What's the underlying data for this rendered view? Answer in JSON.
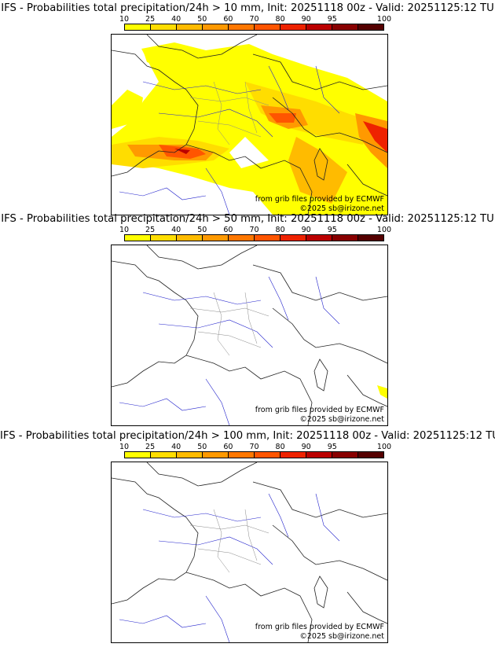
{
  "colorbar": {
    "ticks": [
      "10",
      "25",
      "40",
      "50",
      "60",
      "70",
      "80",
      "90",
      "95",
      "100"
    ],
    "colors": [
      "#ffff00",
      "#ffdd00",
      "#ffbb00",
      "#ff9900",
      "#ff7700",
      "#ff5500",
      "#ee2200",
      "#bb0000",
      "#880000",
      "#550000"
    ]
  },
  "panels": [
    {
      "title": "IFS - Probabilities total precipitation/24h > 10 mm, Init: 20251118 00z - Valid: 20251125:12 TU",
      "source": "from grib files provided by ECMWF",
      "copyright": "©2025 sb@irizone.net"
    },
    {
      "title": "IFS - Probabilities total precipitation/24h > 50 mm, Init: 20251118 00z - Valid: 20251125:12 TU",
      "source": "from grib files provided by ECMWF",
      "copyright": "©2025 sb@irizone.net"
    },
    {
      "title": "IFS - Probabilities total precipitation/24h > 100 mm, Init: 20251118 00z - Valid: 20251125:12 TU",
      "source": "from grib files provided by ECMWF",
      "copyright": "©2025 sb@irizone.net"
    }
  ]
}
